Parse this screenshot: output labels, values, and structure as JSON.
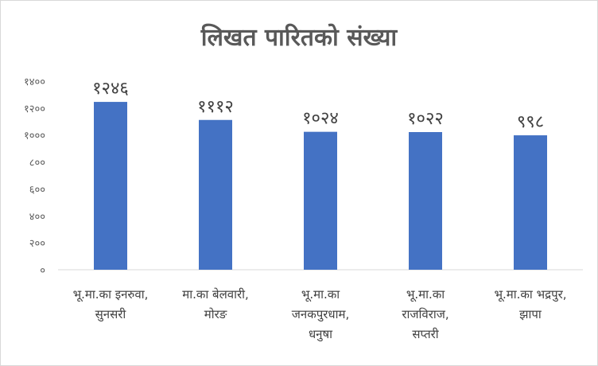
{
  "chart_data": {
    "type": "bar",
    "title": "लिखत पारितको संख्या",
    "categories": [
      [
        "भू.मा.का इनरुवा,",
        "सुनसरी"
      ],
      [
        "मा.का बेलवारी,",
        "मोरङ"
      ],
      [
        "भू.मा.का",
        "जनकपुरधाम,",
        "धनुषा"
      ],
      [
        "भू.मा.का",
        "राजविराज,",
        "सप्तरी"
      ],
      [
        "भू.मा.का भद्रपुर,",
        "झापा"
      ]
    ],
    "values": [
      1246,
      1112,
      1024,
      1022,
      998
    ],
    "data_labels": [
      "१२४६",
      "१११२",
      "१०२४",
      "१०२२",
      "९९८"
    ],
    "ylim": [
      0,
      1400
    ],
    "yticks": [
      0,
      200,
      400,
      600,
      800,
      1000,
      1200,
      1400
    ],
    "ytick_labels": [
      "०",
      "२००",
      "४००",
      "६००",
      "८००",
      "१०००",
      "१२००",
      "१४००"
    ],
    "xlabel": "",
    "ylabel": "",
    "bar_color": "#4472c4",
    "grid": false,
    "legend": "none"
  }
}
